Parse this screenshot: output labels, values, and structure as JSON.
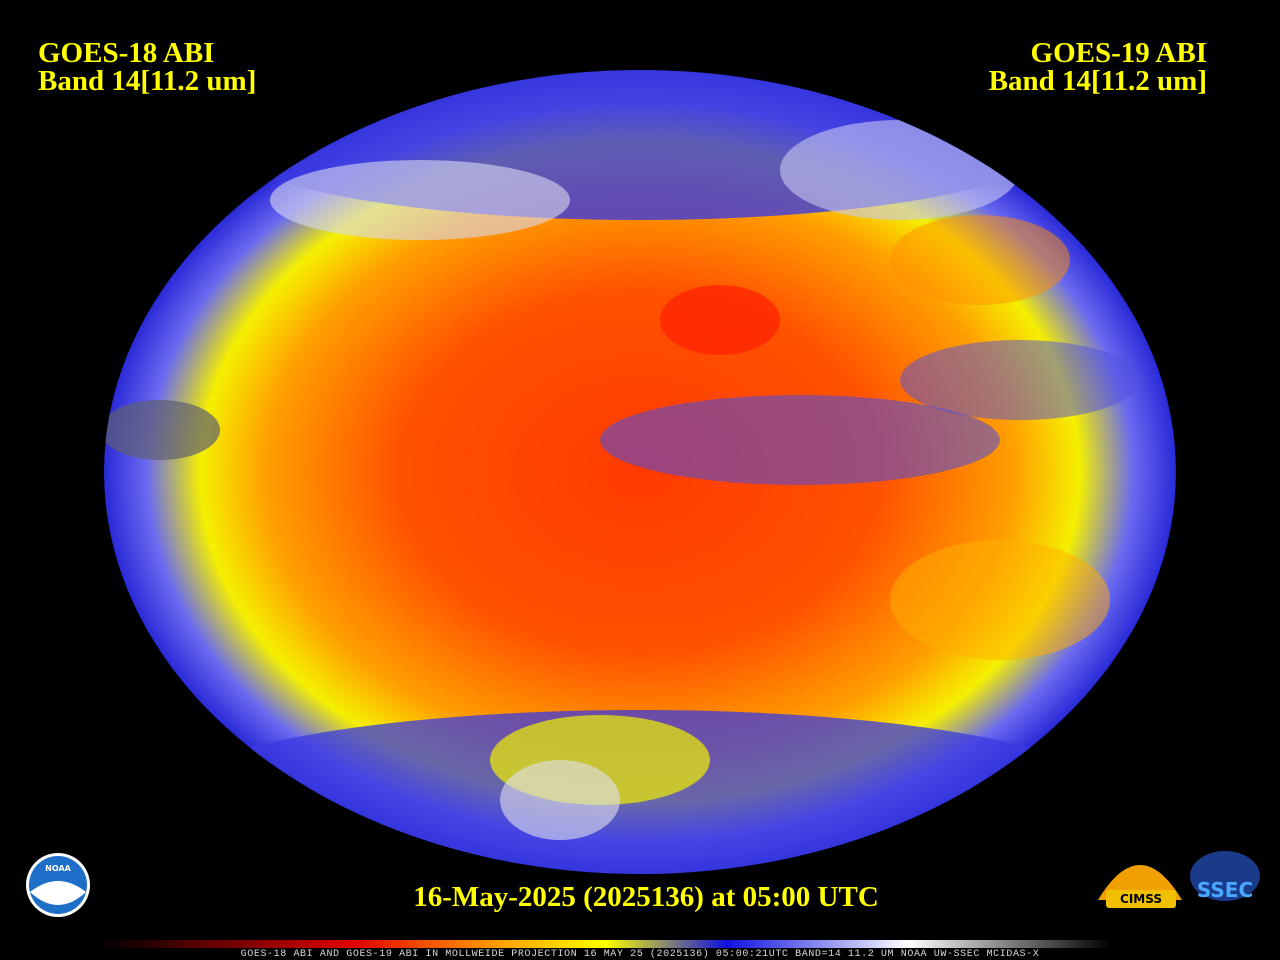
{
  "header": {
    "left": {
      "title": "GOES-18 ABI",
      "band": "Band 14[11.2 um]"
    },
    "right": {
      "title": "GOES-19 ABI",
      "band": "Band 14[11.2 um]"
    }
  },
  "timestamp": "16-May-2025 (2025136) at 05:00 UTC",
  "footer": "GOES-18 ABI AND GOES-19 ABI IN MOLLWEIDE PROJECTION 16 MAY 25 (2025136) 05:00:21UTC BAND=14 11.2 UM NOAA UW-SSEC MCIDAS-X",
  "logos": {
    "noaa": "NOAA",
    "cimss": "CIMSS",
    "ssec": "SSEC"
  }
}
